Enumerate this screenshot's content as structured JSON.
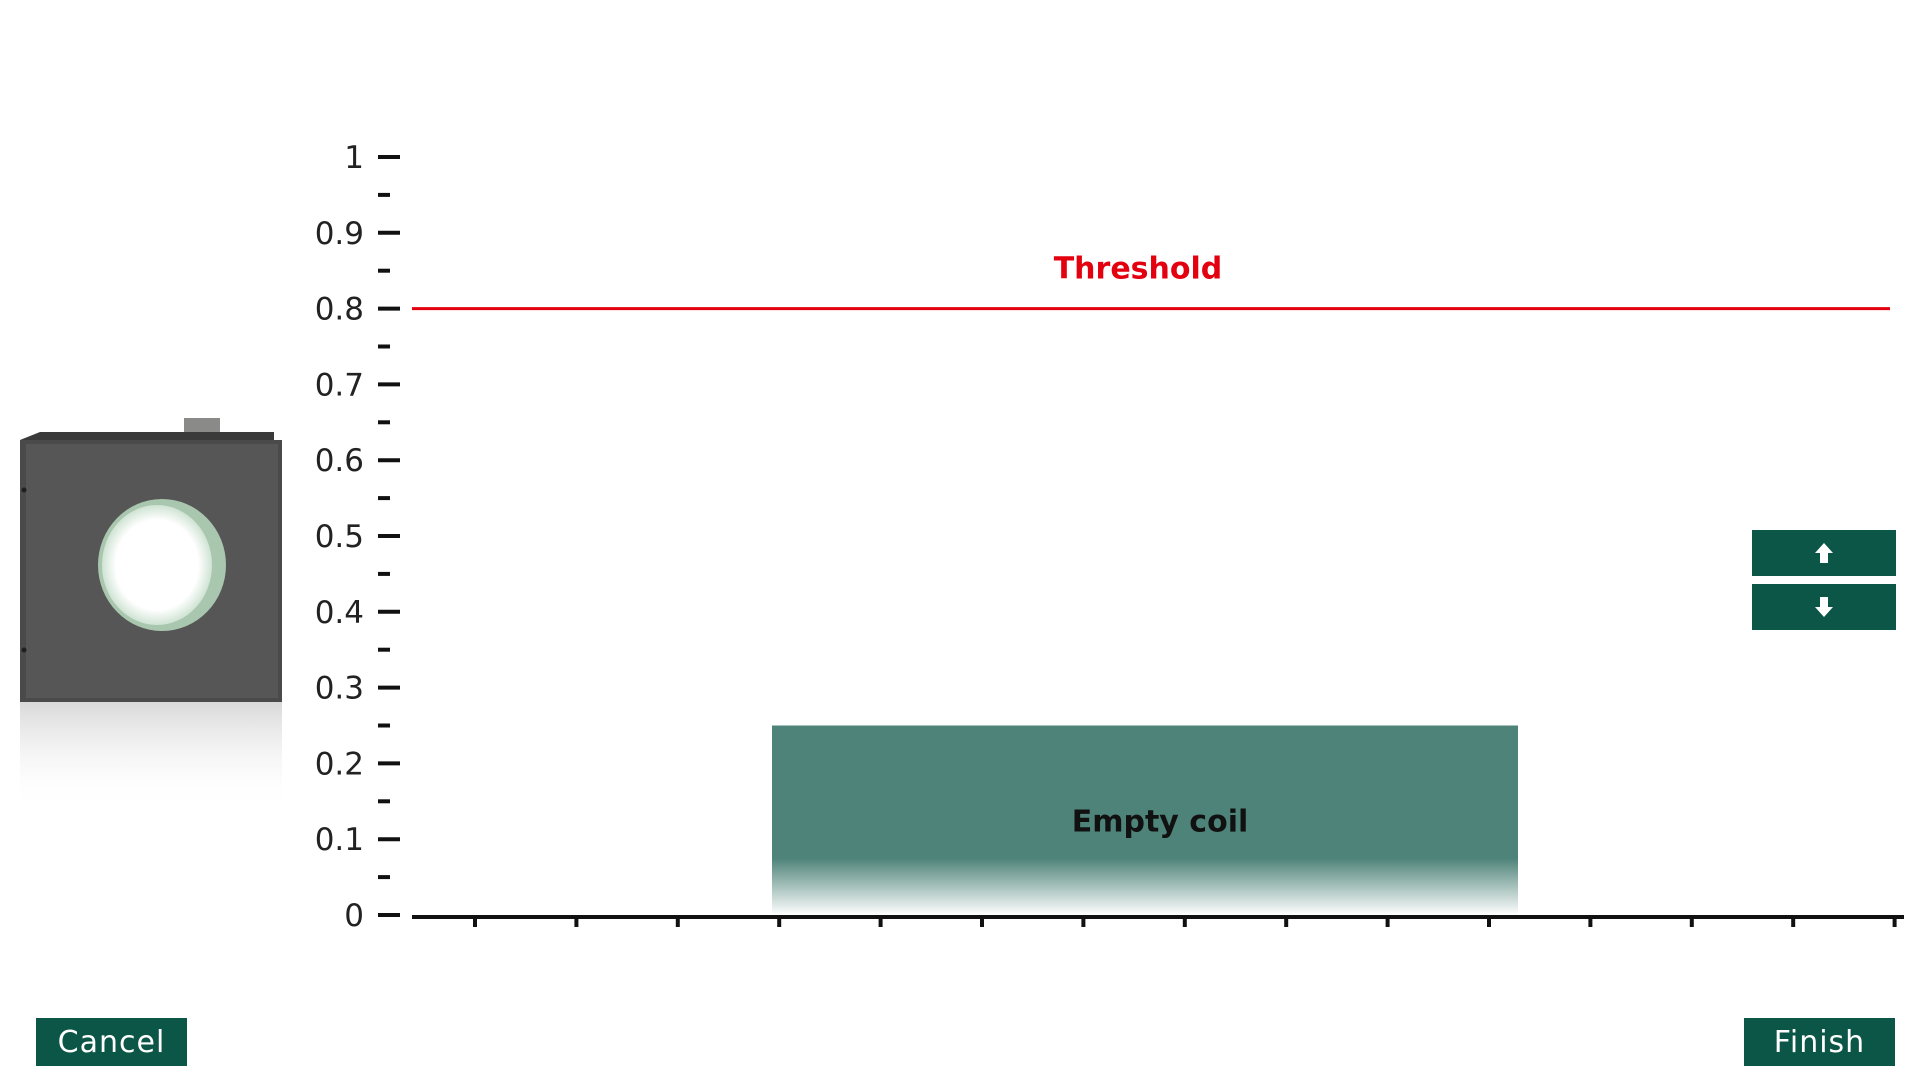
{
  "buttons": {
    "cancel_label": "Cancel",
    "finish_label": "Finish"
  },
  "icons": {
    "up": "arrow-up-icon",
    "down": "arrow-down-icon",
    "device": "coil-sensor-image"
  },
  "colors": {
    "accent": "#0b5646",
    "threshold": "#e3000f",
    "bar": "#4e8379"
  },
  "chart_data": {
    "type": "bar",
    "y_ticks": [
      "0",
      "0.1",
      "0.2",
      "0.3",
      "0.4",
      "0.5",
      "0.6",
      "0.7",
      "0.8",
      "0.9",
      "1"
    ],
    "ylim": [
      0,
      1
    ],
    "threshold": {
      "label": "Threshold",
      "value": 0.8
    },
    "bar": {
      "label": "Empty coil",
      "value": 0.25
    }
  }
}
